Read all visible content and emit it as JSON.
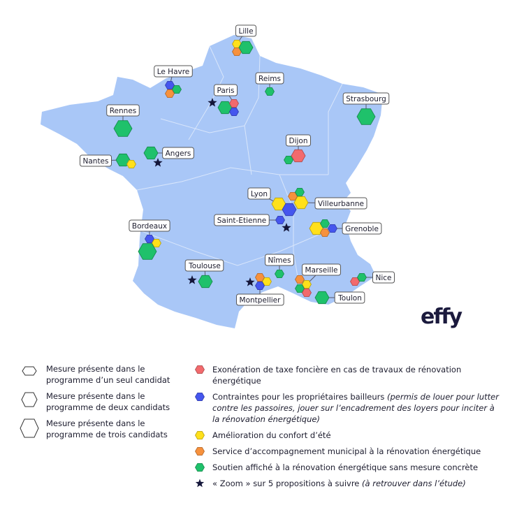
{
  "colors": {
    "map_fill": "#a9c7f7",
    "region_border": "#d9e6fb",
    "measures": {
      "exoneration": "#f26a6d",
      "contraintes": "#4556ee",
      "confort": "#ffe01b",
      "accompagnement": "#f7913d",
      "soutien": "#1fc16b"
    },
    "star": "#14163a"
  },
  "cities": [
    {
      "name": "Lille",
      "measures": [
        {
          "type": "confort",
          "candidates": 1
        },
        {
          "type": "accompagnement",
          "candidates": 1
        },
        {
          "type": "soutien",
          "candidates": 2
        }
      ]
    },
    {
      "name": "Le Havre",
      "measures": [
        {
          "type": "contraintes",
          "candidates": 1
        },
        {
          "type": "soutien",
          "candidates": 1
        },
        {
          "type": "accompagnement",
          "candidates": 1
        }
      ]
    },
    {
      "name": "Reims",
      "measures": [
        {
          "type": "soutien",
          "candidates": 1
        }
      ]
    },
    {
      "name": "Paris",
      "zoom": true,
      "measures": [
        {
          "type": "soutien",
          "candidates": 2
        },
        {
          "type": "exoneration",
          "candidates": 1
        },
        {
          "type": "contraintes",
          "candidates": 1
        }
      ]
    },
    {
      "name": "Strasbourg",
      "measures": [
        {
          "type": "soutien",
          "candidates": 3
        }
      ]
    },
    {
      "name": "Rennes",
      "measures": [
        {
          "type": "soutien",
          "candidates": 3
        }
      ]
    },
    {
      "name": "Dijon",
      "measures": [
        {
          "type": "exoneration",
          "candidates": 2
        },
        {
          "type": "soutien",
          "candidates": 1
        }
      ]
    },
    {
      "name": "Angers",
      "zoom": true,
      "measures": [
        {
          "type": "soutien",
          "candidates": 2
        }
      ]
    },
    {
      "name": "Nantes",
      "measures": [
        {
          "type": "soutien",
          "candidates": 2
        },
        {
          "type": "confort",
          "candidates": 1
        }
      ]
    },
    {
      "name": "Lyon",
      "measures": [
        {
          "type": "confort",
          "candidates": 2
        },
        {
          "type": "contraintes",
          "candidates": 2
        }
      ]
    },
    {
      "name": "Villeurbanne",
      "measures": [
        {
          "type": "accompagnement",
          "candidates": 1
        },
        {
          "type": "soutien",
          "candidates": 1
        },
        {
          "type": "confort",
          "candidates": 2
        }
      ]
    },
    {
      "name": "Saint-Etienne",
      "zoom": true,
      "measures": [
        {
          "type": "contraintes",
          "candidates": 1
        }
      ]
    },
    {
      "name": "Grenoble",
      "measures": [
        {
          "type": "confort",
          "candidates": 2
        },
        {
          "type": "soutien",
          "candidates": 1
        },
        {
          "type": "accompagnement",
          "candidates": 1
        },
        {
          "type": "contraintes",
          "candidates": 1
        }
      ]
    },
    {
      "name": "Bordeaux",
      "measures": [
        {
          "type": "contraintes",
          "candidates": 1
        },
        {
          "type": "confort",
          "candidates": 1
        },
        {
          "type": "soutien",
          "candidates": 3
        }
      ]
    },
    {
      "name": "Toulouse",
      "zoom": true,
      "measures": [
        {
          "type": "soutien",
          "candidates": 2
        }
      ]
    },
    {
      "name": "Nîmes",
      "measures": [
        {
          "type": "soutien",
          "candidates": 1
        }
      ]
    },
    {
      "name": "Marseille",
      "measures": [
        {
          "type": "accompagnement",
          "candidates": 1
        },
        {
          "type": "confort",
          "candidates": 1
        },
        {
          "type": "soutien",
          "candidates": 1
        },
        {
          "type": "exoneration",
          "candidates": 1
        }
      ]
    },
    {
      "name": "Nice",
      "measures": [
        {
          "type": "exoneration",
          "candidates": 1
        },
        {
          "type": "soutien",
          "candidates": 1
        }
      ]
    },
    {
      "name": "Toulon",
      "measures": [
        {
          "type": "soutien",
          "candidates": 2
        }
      ]
    },
    {
      "name": "Montpellier",
      "zoom": true,
      "measures": [
        {
          "type": "accompagnement",
          "candidates": 1
        },
        {
          "type": "confort",
          "candidates": 1
        },
        {
          "type": "contraintes",
          "candidates": 1
        }
      ]
    }
  ],
  "logo": "effy",
  "legend": {
    "sizes": [
      {
        "candidates": 1,
        "label": "Mesure présente dans le programme d’un seul candidat"
      },
      {
        "candidates": 2,
        "label": "Mesure présente dans le programme de deux candidats"
      },
      {
        "candidates": 3,
        "label": "Mesure présente dans le programme de trois candidats"
      }
    ],
    "measures": [
      {
        "type": "exoneration",
        "label": "Exonération de taxe foncière en cas de travaux de rénovation énergétique",
        "note": ""
      },
      {
        "type": "contraintes",
        "label": "Contraintes pour les propriétaires bailleurs ",
        "note": "(permis de louer pour lutter contre les passoires, jouer sur l’encadrement des loyers pour inciter à la rénovation énergétique)"
      },
      {
        "type": "confort",
        "label": "Amélioration du confort d’été",
        "note": ""
      },
      {
        "type": "accompagnement",
        "label": "Service d’accompagnement municipal à la rénovation énergétique",
        "note": ""
      },
      {
        "type": "soutien",
        "label": "Soutien affiché à la rénovation énergétique sans mesure concrète",
        "note": ""
      }
    ],
    "star": {
      "label": "« Zoom » sur 5 propositions à suivre ",
      "note": "(à retrouver dans l’étude)"
    }
  }
}
